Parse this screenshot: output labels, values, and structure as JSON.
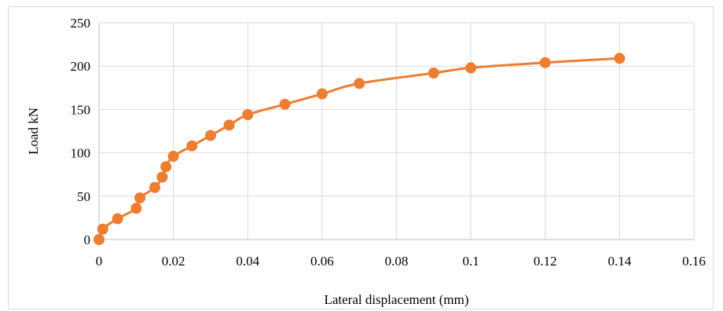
{
  "chart_data": {
    "type": "line",
    "title": "",
    "xlabel": "Lateral displacement (mm)",
    "ylabel": "Load kN",
    "xlim": [
      0,
      0.16
    ],
    "ylim": [
      0,
      250
    ],
    "x_ticks": [
      "0",
      "0.02",
      "0.04",
      "0.06",
      "0.08",
      "0.1",
      "0.12",
      "0.14",
      "0.16"
    ],
    "y_ticks": [
      "0",
      "50",
      "100",
      "150",
      "200",
      "250"
    ],
    "grid": "vertical and horizontal",
    "legend": "none",
    "series": [
      {
        "color": "#ED7D31",
        "marker": "circle",
        "smooth": true,
        "x": [
          0,
          0.001,
          0.005,
          0.01,
          0.011,
          0.015,
          0.017,
          0.018,
          0.02,
          0.025,
          0.03,
          0.035,
          0.04,
          0.05,
          0.06,
          0.07,
          0.09,
          0.1,
          0.12,
          0.14
        ],
        "y": [
          0,
          12,
          24,
          36,
          48,
          60,
          72,
          84,
          96,
          108,
          120,
          132,
          144,
          156,
          168,
          180,
          192,
          198,
          204,
          209
        ]
      }
    ]
  }
}
